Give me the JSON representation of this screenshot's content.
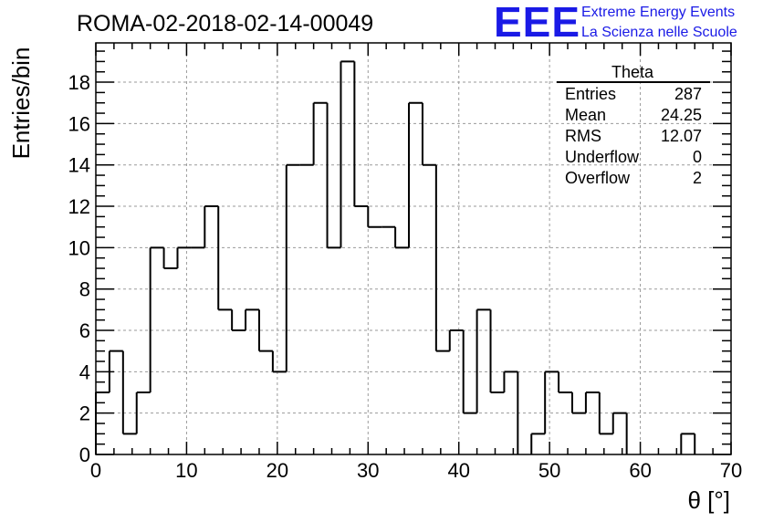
{
  "chart_data": {
    "type": "histogram",
    "title": "ROMA-02-2018-02-14-00049",
    "xlabel": "θ [°]",
    "ylabel": "Entries/bin",
    "xlim": [
      0,
      70
    ],
    "ylim": [
      0,
      19.9
    ],
    "bin_width": 1.5,
    "bin_start": 0,
    "values": [
      3,
      5,
      1,
      3,
      10,
      9,
      10,
      10,
      12,
      7,
      6,
      7,
      5,
      4,
      14,
      14,
      17,
      10,
      19,
      12,
      11,
      11,
      10,
      17,
      14,
      5,
      6,
      2,
      7,
      3,
      4,
      0,
      1,
      4,
      3,
      2,
      3,
      1,
      2,
      0,
      0,
      0,
      0,
      1,
      0
    ],
    "x_ticks": [
      0,
      10,
      20,
      30,
      40,
      50,
      60,
      70
    ],
    "y_ticks": [
      0,
      2,
      4,
      6,
      8,
      10,
      12,
      14,
      16,
      18
    ],
    "grid": true,
    "stats_box": {
      "title": "Theta",
      "rows": [
        {
          "label": "Entries",
          "value": "287"
        },
        {
          "label": "Mean",
          "value": "24.25"
        },
        {
          "label": "RMS",
          "value": "12.07"
        },
        {
          "label": "Underflow",
          "value": "0"
        },
        {
          "label": "Overflow",
          "value": "2"
        }
      ]
    }
  },
  "brand": {
    "logo_text": "EEE",
    "line1": "Extreme Energy Events",
    "line2": "La Scienza nelle Scuole"
  }
}
